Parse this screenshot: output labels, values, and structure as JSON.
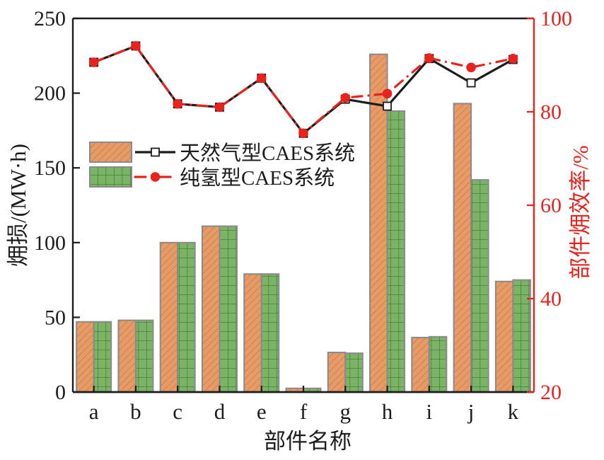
{
  "figure": {
    "background": "#ffffff"
  },
  "chart_data": {
    "type": "bar",
    "has_line_overlay": true,
    "dual_axis": true,
    "categories": [
      "a",
      "b",
      "c",
      "d",
      "e",
      "f",
      "g",
      "h",
      "i",
      "j",
      "k"
    ],
    "bar_series": [
      {
        "name": "天然气型CAES系统",
        "axis": "left",
        "fill": "#E89A67",
        "hatch": "diagonal",
        "hatch_color": "#BE7848",
        "values": [
          47,
          48,
          100,
          111,
          79,
          2.5,
          26.5,
          226,
          36.5,
          193,
          74
        ]
      },
      {
        "name": "纯氢型CAES系统",
        "axis": "left",
        "fill": "#7AB465",
        "hatch": "grid",
        "hatch_color": "#45703A",
        "values": [
          47,
          48,
          100,
          111,
          79,
          2.5,
          26,
          188,
          37,
          142,
          75
        ]
      }
    ],
    "line_series": [
      {
        "name": "天然气型CAES系统",
        "axis": "right",
        "color": "#1c1c1c",
        "line_style": "solid",
        "marker": "open-square",
        "values": [
          90.6,
          94.1,
          81.7,
          81,
          87.2,
          75.4,
          82.7,
          81.2,
          91.4,
          86.2,
          91.2
        ]
      },
      {
        "name": "纯氢型CAES系统",
        "axis": "right",
        "color": "#E8231E",
        "line_style": "dash-dot",
        "marker": "filled-circle",
        "values": [
          90.6,
          94.1,
          81.7,
          81,
          87.2,
          75.4,
          83,
          83.9,
          91.5,
          89.5,
          91.4
        ]
      }
    ],
    "left_axis": {
      "label": "㶲损/(MW·h)",
      "min": 0,
      "max": 250,
      "ticks": [
        "0",
        "50",
        "100",
        "150",
        "200",
        "250"
      ],
      "color": "#1c1c1c"
    },
    "right_axis": {
      "label": "部件㶲效率/%",
      "min": 20,
      "max": 100,
      "ticks": [
        "20",
        "40",
        "60",
        "80",
        "100"
      ],
      "color": "#E8231E"
    },
    "x_axis": {
      "label": "部件名称",
      "color": "#1c1c1c"
    },
    "legend": {
      "position": "upper-left-inside",
      "entries": [
        "天然气型CAES系统",
        "纯氢型CAES系统"
      ]
    },
    "bar_border_color": "#8A8A8A",
    "grid": false
  }
}
